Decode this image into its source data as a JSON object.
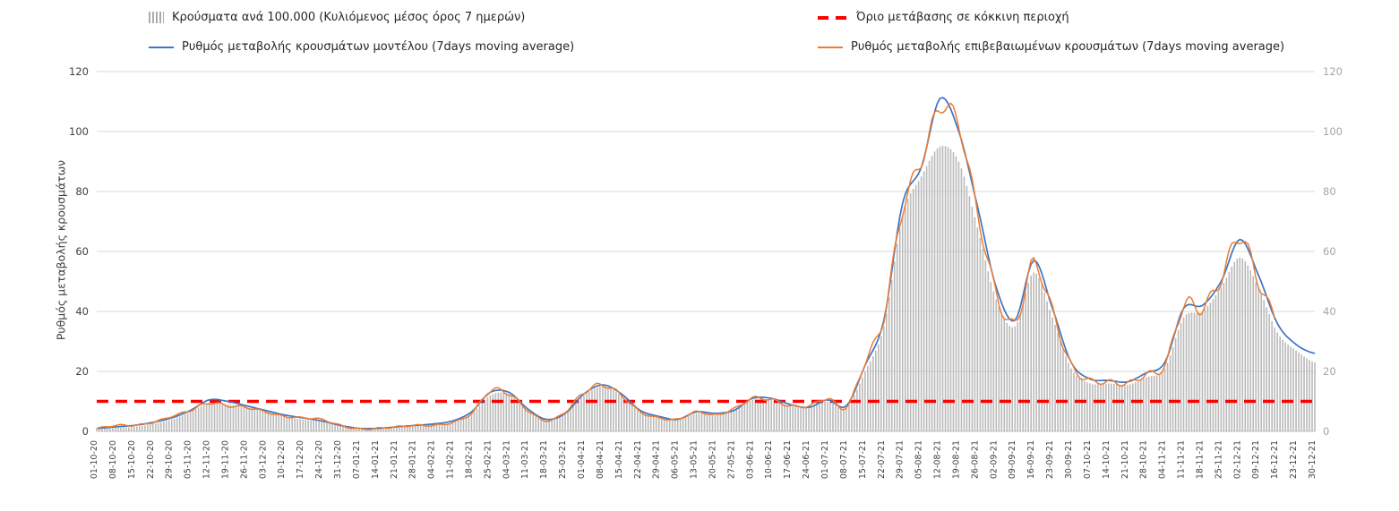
{
  "legend": {
    "bars_label": "Κρούσματα ανά 100.000 (Κυλιόμενος μέσος όρος 7 ημερών)",
    "threshold_label": "Όριο μετάβασης σε κόκκινη περιοχή",
    "model_label": "Ρυθμός μεταβολής κρουσμάτων μοντέλου (7days moving average)",
    "confirmed_label": "Ρυθμός μεταβολής επιβεβαιωμένων κρουσμάτων (7days moving average)"
  },
  "y_axis_title": "Ρυθμός μεταβολής κρουσμάτων",
  "colors": {
    "bars": "#b9b9b9",
    "model_line": "#3d74c4",
    "confirmed_line": "#ed7d31",
    "threshold": "#fe0000",
    "grid": "#d9d9d9",
    "axis": "#bfbfbf",
    "tick_left": "#404040",
    "tick_right": "#a6a6a6",
    "x_labels": "#3f3f3f"
  },
  "chart_data": {
    "type": "composite-bar-line",
    "ylim": [
      0,
      120
    ],
    "y_ticks": [
      0,
      20,
      40,
      60,
      80,
      100,
      120
    ],
    "threshold": {
      "value": 10,
      "label": "Όριο μετάβασης σε κόκκινη περιοχή",
      "color": "#fe0000",
      "style": "dashed"
    },
    "grid": true,
    "legend_position": "top",
    "categories": [
      "01-10-20",
      "08-10-20",
      "15-10-20",
      "22-10-20",
      "29-10-20",
      "05-11-20",
      "12-11-20",
      "19-11-20",
      "26-11-20",
      "03-12-20",
      "10-12-20",
      "17-12-20",
      "24-12-20",
      "31-12-20",
      "07-01-21",
      "14-01-21",
      "21-01-21",
      "28-01-21",
      "04-02-21",
      "11-02-21",
      "18-02-21",
      "25-02-21",
      "04-03-21",
      "11-03-21",
      "18-03-21",
      "25-03-21",
      "01-04-21",
      "08-04-21",
      "15-04-21",
      "22-04-21",
      "29-04-21",
      "06-05-21",
      "13-05-21",
      "20-05-21",
      "27-05-21",
      "03-06-21",
      "10-06-21",
      "17-06-21",
      "24-06-21",
      "01-07-21",
      "08-07-21",
      "15-07-21",
      "22-07-21",
      "29-07-21",
      "05-08-21",
      "12-08-21",
      "19-08-21",
      "26-08-21",
      "02-09-21",
      "09-09-21",
      "16-09-21",
      "23-09-21",
      "30-09-21",
      "07-10-21",
      "14-10-21",
      "21-10-21",
      "28-10-21",
      "04-11-21",
      "11-11-21",
      "18-11-21",
      "25-11-21",
      "02-12-21",
      "09-12-21",
      "16-12-21",
      "23-12-21",
      "30-12-21"
    ],
    "series": [
      {
        "name": "Κρούσματα ανά 100.000 (Κυλιόμενος μέσος όρος 7 ημερών)",
        "type": "bar",
        "color": "#b9b9b9",
        "values": [
          1,
          1.2,
          1.5,
          2.5,
          4,
          6.5,
          9.5,
          9,
          8,
          7,
          5,
          4,
          3.5,
          2,
          1,
          0.8,
          1.2,
          1.8,
          2.2,
          3,
          6,
          12,
          12.5,
          7,
          4,
          6,
          12,
          15,
          12,
          7,
          5,
          4,
          6,
          5.5,
          7,
          10.5,
          10.5,
          8.5,
          8,
          10,
          8,
          20,
          35,
          72,
          85,
          95,
          90,
          68,
          44,
          35,
          53,
          38,
          21,
          16,
          16,
          15.5,
          18,
          21,
          38,
          40,
          48,
          58,
          48,
          33,
          27,
          23
        ]
      },
      {
        "name": "Ρυθμός μεταβολής κρουσμάτων μοντέλου (7days moving average)",
        "type": "line",
        "color": "#3d74c4",
        "values": [
          1,
          1.5,
          2,
          3,
          4.5,
          7,
          10.5,
          10,
          8.5,
          7,
          5.5,
          4.5,
          3.5,
          2,
          1,
          1,
          1.5,
          2,
          2.5,
          3.5,
          6.5,
          13,
          13,
          7.5,
          4,
          6,
          12.5,
          15.5,
          12.5,
          7,
          5,
          4,
          6.5,
          6,
          7,
          11,
          11,
          9,
          8,
          10.5,
          8.5,
          22,
          37,
          76,
          88,
          111,
          100,
          75,
          48,
          37,
          57,
          41,
          23,
          17.5,
          17,
          16.5,
          19.5,
          23,
          41,
          42,
          50,
          64,
          52,
          36,
          29,
          26
        ]
      },
      {
        "name": "Ρυθμός μεταβολής επιβεβαιωμένων κρουσμάτων (7days moving average)",
        "type": "line",
        "color": "#ed7d31",
        "values": [
          1,
          2,
          2,
          3,
          5,
          7,
          9.5,
          8.5,
          8,
          6.5,
          5,
          4.5,
          4,
          2,
          0.8,
          1,
          1.5,
          2,
          2,
          3,
          6,
          13.5,
          12.5,
          7,
          3.5,
          6.5,
          13,
          15.5,
          12,
          6.5,
          4.5,
          4,
          6.5,
          5.5,
          7.5,
          11,
          10.5,
          8.5,
          8.5,
          11,
          8,
          23,
          38,
          74,
          90,
          108,
          102,
          73,
          46,
          36,
          56,
          40,
          22,
          17,
          16.5,
          16,
          19,
          22,
          42,
          41,
          51,
          65,
          50,
          37,
          null,
          null
        ]
      }
    ]
  }
}
